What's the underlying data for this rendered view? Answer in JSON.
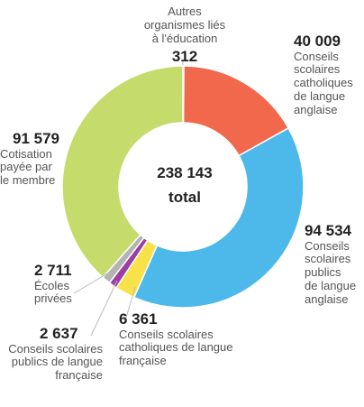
{
  "chart_data": {
    "type": "pie",
    "donut": true,
    "total": {
      "value": "238 143",
      "label": "total"
    },
    "slices": [
      {
        "value_text": "312",
        "value": 312,
        "label": "Autres\norganismes liés\nà l'éducation",
        "color": "#c9c9c9"
      },
      {
        "value_text": "40 009",
        "value": 40009,
        "label": "Conseils\nscolaires\ncatholiques\nde langue\nanglaise",
        "color": "#f2684c"
      },
      {
        "value_text": "94 534",
        "value": 94534,
        "label": "Conseils\nscolaires\npublics\nde langue\nanglaise",
        "color": "#4db9ea"
      },
      {
        "value_text": "6 361",
        "value": 6361,
        "label": "Conseils scolaires\ncatholiques de langue\nfrançaise",
        "color": "#f9e14a"
      },
      {
        "value_text": "2 637",
        "value": 2637,
        "label": "Conseils scolaires\npublics de langue\nfrançaise",
        "color": "#9b3fa1"
      },
      {
        "value_text": "2 711",
        "value": 2711,
        "label": "Écoles\nprivées",
        "color": "#b3b3b3"
      },
      {
        "value_text": "91 579",
        "value": 91579,
        "label": "Cotisation\npayée par\nle membre",
        "color": "#c5db6b"
      }
    ]
  }
}
